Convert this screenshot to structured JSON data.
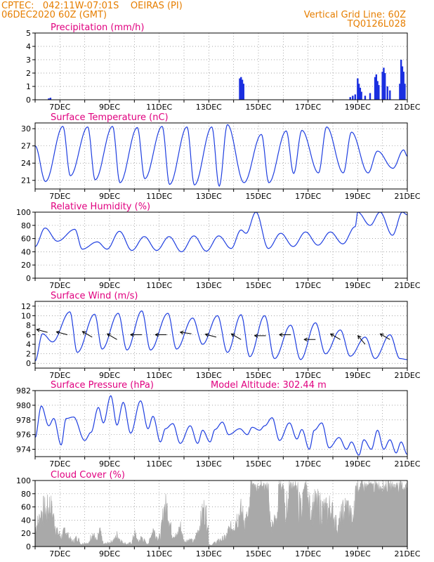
{
  "header": {
    "line1": "CPTEC:   042:11W-07:01S    OEIRAS (PI)",
    "line2": "06DEC2020 60Z (GMT)",
    "grid_note": "Vertical Grid Line: 60Z",
    "code": "TQ0126L028"
  },
  "colors": {
    "header": "#e67e00",
    "title": "#e0007f",
    "line": "#1f3fe0",
    "bar": "#1a2fe0",
    "cloud": "#a9a9a9",
    "grid": "#888888",
    "arrow": "#000000"
  },
  "x_ticks": [
    "7DEC",
    "9DEC",
    "11DEC",
    "13DEC",
    "15DEC",
    "17DEC",
    "19DEC",
    "21DEC"
  ],
  "chart_data": [
    {
      "id": "precip",
      "type": "bar",
      "title": "Precipitation (mm/h)",
      "ylim": [
        0,
        5
      ],
      "yticks": [
        "0",
        "1",
        "2",
        "3",
        "4",
        "5"
      ],
      "x_day_range": [
        6.0,
        21.0
      ],
      "events": [
        {
          "day": 6.55,
          "value": 0.1
        },
        {
          "day": 6.62,
          "value": 0.15
        },
        {
          "day": 14.25,
          "value": 1.6
        },
        {
          "day": 14.3,
          "value": 1.7
        },
        {
          "day": 14.35,
          "value": 1.5
        },
        {
          "day": 14.4,
          "value": 1.2
        },
        {
          "day": 18.7,
          "value": 0.2
        },
        {
          "day": 18.8,
          "value": 0.3
        },
        {
          "day": 18.9,
          "value": 0.4
        },
        {
          "day": 19.0,
          "value": 1.6
        },
        {
          "day": 19.05,
          "value": 1.2
        },
        {
          "day": 19.1,
          "value": 0.9
        },
        {
          "day": 19.15,
          "value": 0.6
        },
        {
          "day": 19.3,
          "value": 0.3
        },
        {
          "day": 19.5,
          "value": 0.5
        },
        {
          "day": 19.7,
          "value": 1.7
        },
        {
          "day": 19.75,
          "value": 1.9
        },
        {
          "day": 19.8,
          "value": 1.4
        },
        {
          "day": 19.85,
          "value": 1.1
        },
        {
          "day": 20.0,
          "value": 2.1
        },
        {
          "day": 20.05,
          "value": 2.4
        },
        {
          "day": 20.1,
          "value": 2.0
        },
        {
          "day": 20.2,
          "value": 1.0
        },
        {
          "day": 20.3,
          "value": 0.7
        },
        {
          "day": 20.7,
          "value": 1.2
        },
        {
          "day": 20.75,
          "value": 3.0
        },
        {
          "day": 20.8,
          "value": 2.5
        },
        {
          "day": 20.85,
          "value": 2.1
        },
        {
          "day": 20.9,
          "value": 1.2
        }
      ]
    },
    {
      "id": "temp",
      "type": "line",
      "title": "Surface Temperature (nC)",
      "ylim": [
        19.5,
        31
      ],
      "yticks": [
        "21",
        "24",
        "27",
        "30"
      ],
      "ytick_values": [
        21,
        24,
        27,
        30
      ],
      "x_day_range": [
        6.0,
        21.0
      ],
      "extrema": [
        [
          6.0,
          27.0
        ],
        [
          6.42,
          20.8
        ],
        [
          7.12,
          30.4
        ],
        [
          7.42,
          21.8
        ],
        [
          8.12,
          30.3
        ],
        [
          8.42,
          21.1
        ],
        [
          9.12,
          30.4
        ],
        [
          9.42,
          20.6
        ],
        [
          10.12,
          30.2
        ],
        [
          10.42,
          21.3
        ],
        [
          11.12,
          30.4
        ],
        [
          11.42,
          20.3
        ],
        [
          12.12,
          30.3
        ],
        [
          12.42,
          20.2
        ],
        [
          13.12,
          30.3
        ],
        [
          13.42,
          20.0
        ],
        [
          13.75,
          30.7
        ],
        [
          14.42,
          20.6
        ],
        [
          15.12,
          29.0
        ],
        [
          15.42,
          20.6
        ],
        [
          16.12,
          29.6
        ],
        [
          16.42,
          22.2
        ],
        [
          16.75,
          29.7
        ],
        [
          17.42,
          22.3
        ],
        [
          17.75,
          30.3
        ],
        [
          18.42,
          22.3
        ],
        [
          18.75,
          29.4
        ],
        [
          19.42,
          22.3
        ],
        [
          19.8,
          26.1
        ],
        [
          20.42,
          23.1
        ],
        [
          20.85,
          26.3
        ],
        [
          21.0,
          25.2
        ]
      ]
    },
    {
      "id": "rh",
      "type": "line",
      "title": "Relative Humidity (%)",
      "ylim": [
        0,
        100
      ],
      "yticks": [
        "0",
        "20",
        "40",
        "60",
        "80",
        "100"
      ],
      "ytick_values": [
        0,
        20,
        40,
        60,
        80,
        100
      ],
      "x_day_range": [
        6.0,
        21.0
      ],
      "extrema": [
        [
          6.0,
          48
        ],
        [
          6.4,
          76
        ],
        [
          6.9,
          56
        ],
        [
          7.6,
          74
        ],
        [
          7.9,
          44
        ],
        [
          8.5,
          55
        ],
        [
          8.9,
          44
        ],
        [
          9.4,
          71
        ],
        [
          9.9,
          42
        ],
        [
          10.4,
          63
        ],
        [
          10.9,
          42
        ],
        [
          11.4,
          63
        ],
        [
          11.9,
          40
        ],
        [
          12.4,
          64
        ],
        [
          12.9,
          41
        ],
        [
          13.4,
          64
        ],
        [
          13.9,
          45
        ],
        [
          14.3,
          73
        ],
        [
          14.5,
          68
        ],
        [
          14.9,
          100
        ],
        [
          15.4,
          45
        ],
        [
          15.9,
          68
        ],
        [
          16.4,
          48
        ],
        [
          16.9,
          70
        ],
        [
          17.4,
          50
        ],
        [
          17.9,
          70
        ],
        [
          18.4,
          52
        ],
        [
          18.9,
          78
        ],
        [
          19.0,
          100
        ],
        [
          19.5,
          80
        ],
        [
          19.9,
          100
        ],
        [
          20.4,
          65
        ],
        [
          20.8,
          100
        ],
        [
          21.0,
          96
        ]
      ]
    },
    {
      "id": "wind",
      "type": "line",
      "title": "Surface Wind (m/s)",
      "ylim": [
        -1,
        13
      ],
      "yticks": [
        "0",
        "2",
        "4",
        "6",
        "8",
        "10",
        "12"
      ],
      "ytick_values": [
        0,
        2,
        4,
        6,
        8,
        10,
        12
      ],
      "x_day_range": [
        6.0,
        21.0
      ],
      "extrema": [
        [
          6.0,
          0.5
        ],
        [
          6.3,
          6.2
        ],
        [
          6.7,
          4.5
        ],
        [
          7.4,
          10.8
        ],
        [
          7.7,
          2.3
        ],
        [
          8.4,
          10.3
        ],
        [
          8.7,
          3.0
        ],
        [
          9.35,
          10.5
        ],
        [
          9.7,
          2.8
        ],
        [
          10.3,
          11.0
        ],
        [
          10.65,
          2.8
        ],
        [
          11.35,
          10.5
        ],
        [
          11.7,
          3.0
        ],
        [
          12.35,
          9.5
        ],
        [
          12.75,
          4.0
        ],
        [
          13.35,
          10.0
        ],
        [
          13.75,
          2.3
        ],
        [
          14.3,
          10.2
        ],
        [
          14.65,
          1.4
        ],
        [
          15.25,
          10.0
        ],
        [
          15.65,
          1.0
        ],
        [
          16.3,
          8.0
        ],
        [
          16.7,
          0.8
        ],
        [
          17.3,
          8.5
        ],
        [
          17.7,
          2.0
        ],
        [
          18.3,
          7.0
        ],
        [
          18.7,
          1.5
        ],
        [
          19.3,
          5.5
        ],
        [
          19.7,
          1.0
        ],
        [
          20.3,
          6.0
        ],
        [
          20.7,
          1.0
        ],
        [
          21.0,
          0.8
        ]
      ],
      "arrows": [
        {
          "day": 6.5,
          "speed": 6.5,
          "dir_deg": 285
        },
        {
          "day": 7.3,
          "speed": 6.0,
          "dir_deg": 285
        },
        {
          "day": 8.3,
          "speed": 5.5,
          "dir_deg": 300
        },
        {
          "day": 9.3,
          "speed": 5.0,
          "dir_deg": 300
        },
        {
          "day": 10.3,
          "speed": 6.0,
          "dir_deg": 270
        },
        {
          "day": 11.3,
          "speed": 6.0,
          "dir_deg": 270
        },
        {
          "day": 12.3,
          "speed": 6.2,
          "dir_deg": 278
        },
        {
          "day": 13.3,
          "speed": 5.5,
          "dir_deg": 285
        },
        {
          "day": 14.3,
          "speed": 5.0,
          "dir_deg": 300
        },
        {
          "day": 15.3,
          "speed": 5.8,
          "dir_deg": 270
        },
        {
          "day": 16.3,
          "speed": 6.0,
          "dir_deg": 270
        },
        {
          "day": 17.3,
          "speed": 5.0,
          "dir_deg": 270
        },
        {
          "day": 18.3,
          "speed": 5.0,
          "dir_deg": 300
        },
        {
          "day": 19.3,
          "speed": 4.0,
          "dir_deg": 320
        },
        {
          "day": 20.3,
          "speed": 5.0,
          "dir_deg": 300
        }
      ]
    },
    {
      "id": "pressure",
      "type": "line",
      "title": "Surface Pressure (hPa)",
      "annotation": "Model Altitude: 302.44 m",
      "ylim": [
        973,
        982
      ],
      "yticks": [
        "974",
        "976",
        "978",
        "980",
        "982"
      ],
      "ytick_values": [
        974,
        976,
        978,
        980,
        982
      ],
      "x_day_range": [
        6.0,
        21.0
      ],
      "extrema": [
        [
          6.0,
          975.6
        ],
        [
          6.25,
          979.9
        ],
        [
          6.55,
          977.2
        ],
        [
          6.75,
          978.2
        ],
        [
          7.05,
          974.6
        ],
        [
          7.25,
          978.2
        ],
        [
          7.55,
          978.4
        ],
        [
          8.0,
          975.2
        ],
        [
          8.25,
          976.3
        ],
        [
          8.55,
          979.7
        ],
        [
          8.75,
          977.6
        ],
        [
          9.05,
          981.3
        ],
        [
          9.3,
          977.3
        ],
        [
          9.55,
          980.4
        ],
        [
          9.85,
          976.2
        ],
        [
          10.25,
          980.6
        ],
        [
          10.55,
          976.8
        ],
        [
          10.75,
          978.5
        ],
        [
          11.05,
          975.0
        ],
        [
          11.25,
          976.8
        ],
        [
          11.55,
          977.5
        ],
        [
          11.85,
          974.8
        ],
        [
          12.25,
          977.2
        ],
        [
          12.55,
          974.8
        ],
        [
          12.75,
          976.6
        ],
        [
          13.05,
          975.0
        ],
        [
          13.25,
          976.7
        ],
        [
          13.55,
          977.7
        ],
        [
          13.8,
          976.0
        ],
        [
          14.25,
          976.8
        ],
        [
          14.55,
          976.0
        ],
        [
          14.75,
          977.0
        ],
        [
          15.05,
          976.6
        ],
        [
          15.25,
          977.2
        ],
        [
          15.55,
          978.3
        ],
        [
          15.85,
          975.2
        ],
        [
          16.25,
          977.6
        ],
        [
          16.55,
          975.4
        ],
        [
          16.75,
          976.7
        ],
        [
          17.05,
          974.0
        ],
        [
          17.25,
          976.6
        ],
        [
          17.55,
          977.6
        ],
        [
          17.85,
          974.2
        ],
        [
          18.25,
          975.6
        ],
        [
          18.55,
          974.0
        ],
        [
          18.75,
          975.0
        ],
        [
          19.05,
          973.2
        ],
        [
          19.25,
          975.3
        ],
        [
          19.55,
          974.0
        ],
        [
          19.8,
          976.6
        ],
        [
          20.05,
          974.0
        ],
        [
          20.3,
          975.3
        ],
        [
          20.55,
          973.5
        ],
        [
          20.75,
          975.0
        ],
        [
          21.0,
          973.3
        ]
      ]
    },
    {
      "id": "cloud",
      "type": "area",
      "title": "Cloud Cover (%)",
      "ylim": [
        0,
        100
      ],
      "yticks": [
        "0",
        "20",
        "40",
        "60",
        "80",
        "100"
      ],
      "ytick_values": [
        0,
        20,
        40,
        60,
        80,
        100
      ],
      "x_day_range": [
        6.0,
        21.0
      ],
      "envelope": [
        [
          6.0,
          40
        ],
        [
          6.15,
          55
        ],
        [
          6.3,
          80
        ],
        [
          6.45,
          75
        ],
        [
          6.6,
          90
        ],
        [
          6.75,
          60
        ],
        [
          6.9,
          30
        ],
        [
          7.1,
          20
        ],
        [
          7.2,
          40
        ],
        [
          7.3,
          25
        ],
        [
          7.5,
          10
        ],
        [
          7.7,
          20
        ],
        [
          7.85,
          5
        ],
        [
          8.0,
          8
        ],
        [
          8.15,
          5
        ],
        [
          8.3,
          30
        ],
        [
          8.5,
          10
        ],
        [
          8.6,
          35
        ],
        [
          8.75,
          5
        ],
        [
          9.0,
          8
        ],
        [
          9.2,
          15
        ],
        [
          9.3,
          25
        ],
        [
          9.5,
          10
        ],
        [
          9.7,
          5
        ],
        [
          9.9,
          8
        ],
        [
          10.0,
          30
        ],
        [
          10.15,
          10
        ],
        [
          10.3,
          20
        ],
        [
          10.5,
          5
        ],
        [
          10.6,
          10
        ],
        [
          10.75,
          40
        ],
        [
          10.9,
          20
        ],
        [
          11.05,
          20
        ],
        [
          11.2,
          85
        ],
        [
          11.35,
          80
        ],
        [
          11.5,
          30
        ],
        [
          11.7,
          20
        ],
        [
          11.85,
          45
        ],
        [
          12.0,
          10
        ],
        [
          12.2,
          15
        ],
        [
          12.4,
          10
        ],
        [
          12.6,
          40
        ],
        [
          12.8,
          80
        ],
        [
          12.95,
          60
        ],
        [
          13.0,
          5
        ],
        [
          13.1,
          3
        ],
        [
          13.3,
          10
        ],
        [
          13.5,
          15
        ],
        [
          13.7,
          20
        ],
        [
          13.8,
          35
        ],
        [
          13.95,
          42
        ],
        [
          14.1,
          60
        ],
        [
          14.3,
          75
        ],
        [
          14.45,
          55
        ],
        [
          14.6,
          60
        ],
        [
          14.7,
          100
        ],
        [
          15.0,
          95
        ],
        [
          15.2,
          98
        ],
        [
          15.4,
          95
        ],
        [
          15.5,
          40
        ],
        [
          15.7,
          55
        ],
        [
          15.8,
          90
        ],
        [
          16.0,
          95
        ],
        [
          16.1,
          85
        ],
        [
          16.3,
          92
        ],
        [
          16.5,
          95
        ],
        [
          16.7,
          85
        ],
        [
          16.9,
          95
        ],
        [
          17.1,
          80
        ],
        [
          17.3,
          90
        ],
        [
          17.5,
          85
        ],
        [
          17.7,
          75
        ],
        [
          17.9,
          85
        ],
        [
          18.0,
          70
        ],
        [
          18.2,
          40
        ],
        [
          18.4,
          75
        ],
        [
          18.6,
          85
        ],
        [
          18.8,
          50
        ],
        [
          18.9,
          95
        ],
        [
          19.1,
          100
        ],
        [
          19.3,
          95
        ],
        [
          19.5,
          100
        ],
        [
          19.7,
          100
        ],
        [
          19.9,
          95
        ],
        [
          20.1,
          100
        ],
        [
          20.3,
          90
        ],
        [
          20.5,
          100
        ],
        [
          20.7,
          100
        ],
        [
          20.9,
          95
        ],
        [
          21.0,
          100
        ]
      ]
    }
  ]
}
